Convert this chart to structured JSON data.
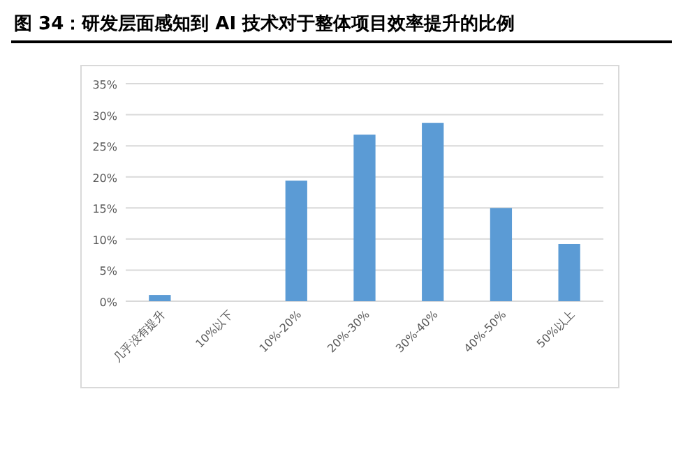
{
  "chart_data": {
    "type": "bar",
    "title": "图 34：研发层面感知到 AI 技术对于整体项目效率提升的比例",
    "categories": [
      "几乎没有提升",
      "10%以下",
      "10%-20%",
      "20%-30%",
      "30%-40%",
      "40%-50%",
      "50%以上"
    ],
    "values": [
      1.0,
      0,
      19.4,
      26.8,
      28.7,
      15.0,
      9.2
    ],
    "color": "#5b9bd5",
    "ylim": [
      0,
      35
    ],
    "yticks": [
      {
        "value": 0,
        "label": "0%"
      },
      {
        "value": 5,
        "label": "5%"
      },
      {
        "value": 10,
        "label": "10%"
      },
      {
        "value": 15,
        "label": "15%"
      },
      {
        "value": 20,
        "label": "20%"
      },
      {
        "value": 25,
        "label": "25%"
      },
      {
        "value": 30,
        "label": "30%"
      },
      {
        "value": 35,
        "label": "35%"
      }
    ],
    "grid": "y"
  }
}
